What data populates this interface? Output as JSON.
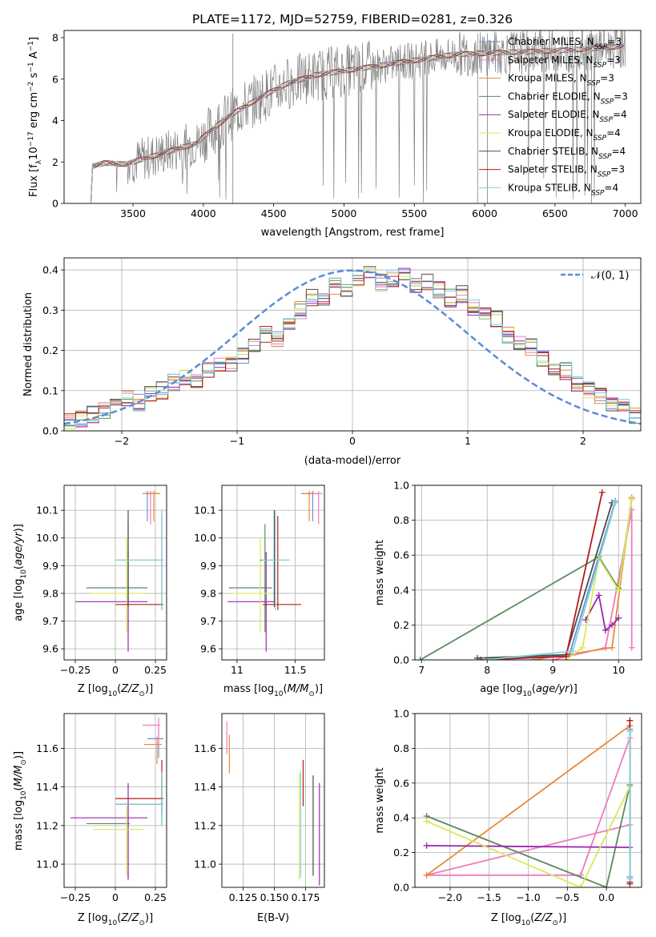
{
  "figure": {
    "title": "PLATE=1172, MJD=52759, FIBERID=0281, z=0.326"
  },
  "palette": {
    "Chabrier MILES": "#6b8fd6",
    "Salpeter MILES": "#ef7bbf",
    "Kroupa MILES": "#e8893a",
    "Chabrier ELODIE": "#5b8a5d",
    "Salpeter ELODIE": "#9b27b0",
    "Kroupa ELODIE": "#d9e85a",
    "Chabrier STELIB": "#4b4b4b",
    "Salpeter STELIB": "#b51c1c",
    "Kroupa STELIB": "#7ed3dc",
    "data": "#808080",
    "normal": "#5b8bd6"
  },
  "chart_data": [
    {
      "id": "spectrum",
      "type": "line",
      "title": "PLATE=1172, MJD=52759, FIBERID=0281, z=0.326",
      "xlabel": "wavelength [Angstrom, rest frame]",
      "ylabel": "Flux [f_λ 10^-17 erg cm^-2 s^-1 A^-1]",
      "xlim": [
        3010,
        7110
      ],
      "ylim": [
        0,
        8.35
      ],
      "xticks": [
        3500,
        4000,
        4500,
        5000,
        5500,
        6000,
        6500,
        7000
      ],
      "yticks": [
        0,
        2,
        4,
        6,
        8
      ],
      "legend_placement": "top-right",
      "legend": [
        {
          "label": "Chabrier MILES",
          "n": "3"
        },
        {
          "label": "Salpeter MILES",
          "n": "3"
        },
        {
          "label": "Kroupa MILES",
          "n": "3"
        },
        {
          "label": "Chabrier ELODIE",
          "n": "3"
        },
        {
          "label": "Salpeter ELODIE",
          "n": "4"
        },
        {
          "label": "Kroupa ELODIE",
          "n": "4"
        },
        {
          "label": "Chabrier STELIB",
          "n": "4"
        },
        {
          "label": "Salpeter STELIB",
          "n": "3"
        },
        {
          "label": "Kroupa STELIB",
          "n": "4"
        }
      ],
      "continuum": [
        [
          3200,
          0.0
        ],
        [
          3210,
          1.8
        ],
        [
          3300,
          1.95
        ],
        [
          3450,
          1.9
        ],
        [
          3600,
          2.2
        ],
        [
          3800,
          2.6
        ],
        [
          3950,
          2.9
        ],
        [
          4050,
          3.5
        ],
        [
          4200,
          4.3
        ],
        [
          4400,
          5.1
        ],
        [
          4600,
          5.8
        ],
        [
          4800,
          6.2
        ],
        [
          5000,
          6.4
        ],
        [
          5200,
          6.6
        ],
        [
          5400,
          6.8
        ],
        [
          5600,
          7.0
        ],
        [
          5800,
          7.2
        ],
        [
          6000,
          7.25
        ],
        [
          6200,
          7.3
        ],
        [
          6400,
          7.35
        ],
        [
          6600,
          7.4
        ],
        [
          6800,
          7.5
        ],
        [
          7000,
          7.6
        ]
      ],
      "series_mark": "models overlap data"
    },
    {
      "id": "residuals",
      "type": "step",
      "xlabel": "(data-model)/error",
      "ylabel": "Normed distribution",
      "xlim": [
        -2.5,
        2.5
      ],
      "ylim": [
        0,
        0.43
      ],
      "xticks": [
        -2,
        -1,
        0,
        1,
        2
      ],
      "yticks": [
        0.0,
        0.1,
        0.2,
        0.3,
        0.4
      ],
      "grid": true,
      "legend_placement": "top-right",
      "normal_label": "𝒩(0, 1)",
      "bin_width": 0.1,
      "bin_start": -2.5,
      "hist": [
        0.02,
        0.03,
        0.04,
        0.05,
        0.06,
        0.08,
        0.07,
        0.09,
        0.1,
        0.12,
        0.13,
        0.12,
        0.15,
        0.16,
        0.17,
        0.19,
        0.21,
        0.24,
        0.23,
        0.27,
        0.3,
        0.33,
        0.32,
        0.36,
        0.35,
        0.38,
        0.39,
        0.37,
        0.38,
        0.39,
        0.36,
        0.37,
        0.35,
        0.33,
        0.34,
        0.31,
        0.3,
        0.28,
        0.24,
        0.22,
        0.21,
        0.18,
        0.16,
        0.15,
        0.12,
        0.1,
        0.09,
        0.07,
        0.06,
        0.04
      ]
    },
    {
      "id": "age-vs-Z",
      "type": "scatter",
      "xlabel": "Z [log10(Z/Z⊙)]",
      "ylabel": "age [log10(age/yr)]",
      "xlim": [
        -0.32,
        0.32
      ],
      "ylim": [
        9.56,
        10.19
      ],
      "xticks": [
        -0.25,
        0.0,
        0.25
      ],
      "yticks": [
        9.6,
        9.7,
        9.8,
        9.9,
        10.0,
        10.1
      ],
      "points": [
        {
          "s": "Chabrier MILES",
          "x": 0.2,
          "y": 10.16,
          "xe": [
            0.17,
            0.28
          ],
          "ye": [
            10.06,
            10.17
          ]
        },
        {
          "s": "Salpeter MILES",
          "x": 0.22,
          "y": 10.16,
          "xe": [
            0.17,
            0.28
          ],
          "ye": [
            10.05,
            10.17
          ]
        },
        {
          "s": "Kroupa MILES",
          "x": 0.24,
          "y": 10.16,
          "xe": [
            0.18,
            0.28
          ],
          "ye": [
            10.06,
            10.17
          ]
        },
        {
          "s": "Chabrier ELODIE",
          "x": 0.08,
          "y": 9.82,
          "xe": [
            -0.18,
            0.2
          ],
          "ye": [
            9.66,
            10.05
          ]
        },
        {
          "s": "Salpeter ELODIE",
          "x": 0.08,
          "y": 9.77,
          "xe": [
            -0.25,
            0.2
          ],
          "ye": [
            9.59,
            9.95
          ]
        },
        {
          "s": "Kroupa ELODIE",
          "x": 0.07,
          "y": 9.8,
          "xe": [
            -0.15,
            0.19
          ],
          "ye": [
            9.66,
            10.0
          ]
        },
        {
          "s": "Chabrier STELIB",
          "x": 0.08,
          "y": 9.92,
          "xe": [
            0.0,
            0.3
          ],
          "ye": [
            9.75,
            10.1
          ]
        },
        {
          "s": "Salpeter STELIB",
          "x": 0.29,
          "y": 9.76,
          "xe": [
            0.0,
            0.3
          ],
          "ye": [
            9.74,
            10.08
          ]
        },
        {
          "s": "Kroupa STELIB",
          "x": 0.29,
          "y": 9.92,
          "xe": [
            0.0,
            0.3
          ],
          "ye": [
            9.74,
            10.1
          ]
        }
      ]
    },
    {
      "id": "age-vs-mass",
      "type": "scatter",
      "xlabel": "mass [log10(M/M⊙)]",
      "ylabel": "",
      "xlim": [
        10.87,
        11.75
      ],
      "ylim": [
        9.56,
        10.19
      ],
      "xticks": [
        11.0,
        11.5
      ],
      "yticks": [
        9.6,
        9.7,
        9.8,
        9.9,
        10.0,
        10.1
      ],
      "points": [
        {
          "s": "Chabrier MILES",
          "x": 11.65,
          "y": 10.16,
          "xe": [
            11.55,
            11.68
          ],
          "ye": [
            10.06,
            10.17
          ]
        },
        {
          "s": "Salpeter MILES",
          "x": 11.7,
          "y": 10.16,
          "xe": [
            11.6,
            11.73
          ],
          "ye": [
            10.05,
            10.17
          ]
        },
        {
          "s": "Kroupa MILES",
          "x": 11.62,
          "y": 10.16,
          "xe": [
            11.55,
            11.66
          ],
          "ye": [
            10.06,
            10.17
          ]
        },
        {
          "s": "Chabrier ELODIE",
          "x": 11.24,
          "y": 9.82,
          "xe": [
            10.93,
            11.3
          ],
          "ye": [
            9.66,
            10.05
          ]
        },
        {
          "s": "Salpeter ELODIE",
          "x": 11.25,
          "y": 9.77,
          "xe": [
            10.92,
            11.33
          ],
          "ye": [
            9.59,
            9.95
          ]
        },
        {
          "s": "Kroupa ELODIE",
          "x": 11.2,
          "y": 9.8,
          "xe": [
            10.95,
            11.3
          ],
          "ye": [
            9.66,
            10.0
          ]
        },
        {
          "s": "Chabrier STELIB",
          "x": 11.32,
          "y": 9.92,
          "xe": [
            11.2,
            11.45
          ],
          "ye": [
            9.75,
            10.1
          ]
        },
        {
          "s": "Salpeter STELIB",
          "x": 11.35,
          "y": 9.76,
          "xe": [
            11.22,
            11.55
          ],
          "ye": [
            9.74,
            10.08
          ]
        },
        {
          "s": "Kroupa STELIB",
          "x": 11.33,
          "y": 9.92,
          "xe": [
            11.21,
            11.45
          ],
          "ye": [
            9.74,
            10.1
          ]
        }
      ]
    },
    {
      "id": "massweight-vs-age",
      "type": "line",
      "xlabel": "age [log10(age/yr)]",
      "ylabel": "mass weight",
      "xlim": [
        6.9,
        10.35
      ],
      "ylim": [
        0.0,
        1.0
      ],
      "xticks": [
        7,
        8,
        9,
        10
      ],
      "yticks": [
        0.0,
        0.2,
        0.4,
        0.6,
        0.8,
        1.0
      ],
      "grid": true,
      "series": [
        {
          "s": "Chabrier MILES",
          "points": [
            [
              7.9,
              0.0
            ],
            [
              9.25,
              0.03
            ],
            [
              9.95,
              0.91
            ]
          ]
        },
        {
          "s": "Salpeter MILES",
          "points": [
            [
              9.0,
              0.0
            ],
            [
              9.8,
              0.07
            ],
            [
              10.2,
              0.86
            ],
            [
              10.2,
              0.07
            ]
          ]
        },
        {
          "s": "Kroupa MILES",
          "points": [
            [
              8.7,
              0.0
            ],
            [
              9.9,
              0.07
            ],
            [
              10.2,
              0.93
            ]
          ]
        },
        {
          "s": "Chabrier ELODIE",
          "points": [
            [
              6.98,
              0.0
            ],
            [
              9.7,
              0.59
            ],
            [
              10.0,
              0.41
            ],
            [
              10.2,
              0.92
            ]
          ]
        },
        {
          "s": "Salpeter ELODIE",
          "points": [
            [
              9.5,
              0.23
            ],
            [
              9.7,
              0.37
            ],
            [
              9.8,
              0.17
            ],
            [
              9.9,
              0.2
            ],
            [
              10.0,
              0.24
            ]
          ]
        },
        {
          "s": "Kroupa ELODIE",
          "points": [
            [
              9.2,
              0.0
            ],
            [
              9.45,
              0.07
            ],
            [
              9.7,
              0.58
            ],
            [
              10.0,
              0.4
            ],
            [
              10.2,
              0.92
            ]
          ]
        },
        {
          "s": "Chabrier STELIB",
          "points": [
            [
              7.85,
              0.01
            ],
            [
              9.2,
              0.03
            ],
            [
              9.9,
              0.9
            ]
          ]
        },
        {
          "s": "Salpeter STELIB",
          "points": [
            [
              7.9,
              0.0
            ],
            [
              9.2,
              0.02
            ],
            [
              9.75,
              0.96
            ]
          ]
        },
        {
          "s": "Kroupa STELIB",
          "points": [
            [
              7.95,
              0.0
            ],
            [
              9.3,
              0.05
            ],
            [
              9.95,
              0.9
            ]
          ]
        }
      ]
    },
    {
      "id": "mass-vs-Z",
      "type": "scatter",
      "xlabel": "Z [log10(Z/Z⊙)]",
      "ylabel": "mass [log10(M/M⊙)]",
      "xlim": [
        -0.32,
        0.32
      ],
      "ylim": [
        10.88,
        11.78
      ],
      "xticks": [
        -0.25,
        0.0,
        0.25
      ],
      "yticks": [
        11.0,
        11.2,
        11.4,
        11.6
      ],
      "points": [
        {
          "s": "Chabrier MILES",
          "x": 0.27,
          "y": 11.65,
          "xe": [
            0.2,
            0.3
          ],
          "ye": [
            11.55,
            11.7
          ]
        },
        {
          "s": "Salpeter MILES",
          "x": 0.27,
          "y": 11.72,
          "xe": [
            0.17,
            0.28
          ],
          "ye": [
            11.62,
            11.76
          ]
        },
        {
          "s": "Kroupa MILES",
          "x": 0.26,
          "y": 11.62,
          "xe": [
            0.18,
            0.29
          ],
          "ye": [
            11.52,
            11.66
          ]
        },
        {
          "s": "Chabrier ELODIE",
          "x": 0.08,
          "y": 11.21,
          "xe": [
            -0.18,
            0.09
          ],
          "ye": [
            10.92,
            11.32
          ]
        },
        {
          "s": "Salpeter ELODIE",
          "x": 0.08,
          "y": 11.24,
          "xe": [
            -0.28,
            0.2
          ],
          "ye": [
            10.92,
            11.42
          ]
        },
        {
          "s": "Kroupa ELODIE",
          "x": 0.07,
          "y": 11.18,
          "xe": [
            -0.14,
            0.18
          ],
          "ye": [
            10.94,
            11.3
          ]
        },
        {
          "s": "Chabrier STELIB",
          "x": 0.29,
          "y": 11.31,
          "xe": [
            0.0,
            0.3
          ],
          "ye": [
            11.2,
            11.48
          ]
        },
        {
          "s": "Salpeter STELIB",
          "x": 0.29,
          "y": 11.34,
          "xe": [
            0.0,
            0.3
          ],
          "ye": [
            11.26,
            11.54
          ]
        },
        {
          "s": "Kroupa STELIB",
          "x": 0.29,
          "y": 11.31,
          "xe": [
            0.0,
            0.3
          ],
          "ye": [
            11.2,
            11.48
          ]
        }
      ]
    },
    {
      "id": "mass-vs-EBV",
      "type": "scatter",
      "xlabel": "E(B-V)",
      "ylabel": "",
      "xlim": [
        0.108,
        0.19
      ],
      "ylim": [
        10.88,
        11.78
      ],
      "xticks": [
        0.125,
        0.15,
        0.175
      ],
      "xticklabels": [
        "0.125",
        "0.150",
        "0.175"
      ],
      "yticks": [
        11.0,
        11.2,
        11.4,
        11.6
      ],
      "points": [
        {
          "s": "Salpeter MILES",
          "x": 0.112,
          "y": 11.65,
          "ye": [
            11.57,
            11.74
          ]
        },
        {
          "s": "Kroupa MILES",
          "x": 0.114,
          "y": 11.6,
          "ye": [
            11.47,
            11.67
          ]
        },
        {
          "s": "Kroupa ELODIE",
          "x": 0.17,
          "y": 11.2,
          "ye": [
            10.92,
            11.47
          ]
        },
        {
          "s": "Kroupa STELIB",
          "x": 0.171,
          "y": 11.2,
          "ye": [
            10.93,
            11.48
          ]
        },
        {
          "s": "Salpeter STELIB",
          "x": 0.173,
          "y": 11.4,
          "ye": [
            11.3,
            11.54
          ]
        },
        {
          "s": "Chabrier STELIB",
          "x": 0.181,
          "y": 11.2,
          "ye": [
            10.94,
            11.46
          ]
        },
        {
          "s": "Salpeter ELODIE",
          "x": 0.186,
          "y": 11.15,
          "ye": [
            10.89,
            11.42
          ]
        }
      ]
    },
    {
      "id": "massweight-vs-Z",
      "type": "line",
      "xlabel": "Z [log10(Z/Z⊙)]",
      "ylabel": "mass weight",
      "xlim": [
        -2.45,
        0.45
      ],
      "ylim": [
        0.0,
        1.0
      ],
      "xticks": [
        -2.0,
        -1.5,
        -1.0,
        -0.5,
        0.0
      ],
      "xticklabels": [
        "−2.0",
        "−1.5",
        "−1.0",
        "−0.5",
        "0.0"
      ],
      "yticks": [
        0.0,
        0.2,
        0.4,
        0.6,
        0.8,
        1.0
      ],
      "grid": true,
      "series": [
        {
          "s": "Chabrier MILES",
          "points": [
            [
              0.3,
              0.06
            ],
            [
              0.3,
              0.91
            ]
          ]
        },
        {
          "s": "Salpeter MILES",
          "points": [
            [
              0.3,
              0.86
            ],
            [
              -0.33,
              0.07
            ],
            [
              -2.3,
              0.07
            ],
            [
              0.3,
              0.36
            ]
          ]
        },
        {
          "s": "Kroupa MILES",
          "points": [
            [
              -2.3,
              0.07
            ],
            [
              0.3,
              0.93
            ]
          ]
        },
        {
          "s": "Chabrier ELODIE",
          "points": [
            [
              -2.3,
              0.41
            ],
            [
              0.0,
              0.0
            ],
            [
              0.3,
              0.59
            ]
          ]
        },
        {
          "s": "Salpeter ELODIE",
          "points": [
            [
              -2.3,
              0.24
            ],
            [
              0.3,
              0.23
            ]
          ]
        },
        {
          "s": "Kroupa ELODIE",
          "points": [
            [
              -2.3,
              0.38
            ],
            [
              -0.33,
              0.0
            ],
            [
              0.3,
              0.58
            ]
          ]
        },
        {
          "s": "Chabrier STELIB",
          "points": [
            [
              0.3,
              0.03
            ],
            [
              0.3,
              0.9
            ]
          ]
        },
        {
          "s": "Salpeter STELIB",
          "points": [
            [
              0.3,
              0.02
            ],
            [
              0.3,
              0.96
            ]
          ]
        },
        {
          "s": "Kroupa STELIB",
          "points": [
            [
              0.3,
              0.05
            ],
            [
              0.3,
              0.9
            ]
          ]
        }
      ]
    }
  ]
}
